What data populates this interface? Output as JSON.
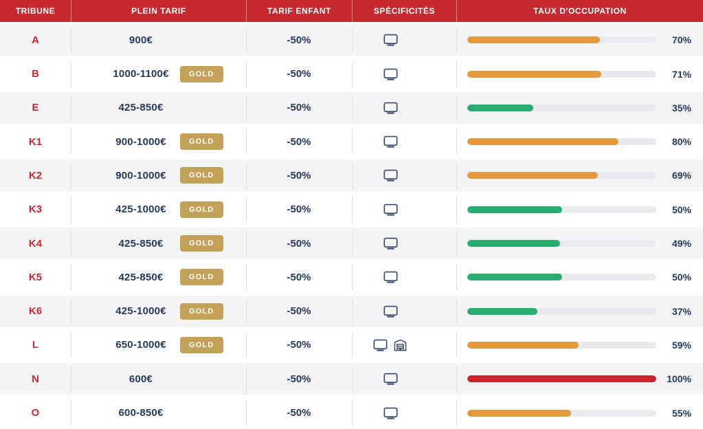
{
  "header": {
    "columns": [
      "TRIBUNE",
      "PLEIN TARIF",
      "TARIF ENFANT",
      "SPÉCIFICITÉS",
      "TAUX D'OCCUPATION"
    ]
  },
  "badge_label": "GOLD",
  "rows": [
    {
      "tribune": "A",
      "plein_tarif": "900€",
      "gold": false,
      "tarif_enfant": "-50%",
      "specificites": [
        "screen"
      ],
      "taux_percent": 70,
      "taux_label": "70%",
      "bar_color": "orange"
    },
    {
      "tribune": "B",
      "plein_tarif": "1000-1100€",
      "gold": true,
      "tarif_enfant": "-50%",
      "specificites": [
        "screen"
      ],
      "taux_percent": 71,
      "taux_label": "71%",
      "bar_color": "orange"
    },
    {
      "tribune": "E",
      "plein_tarif": "425-850€",
      "gold": false,
      "tarif_enfant": "-50%",
      "specificites": [
        "screen"
      ],
      "taux_percent": 35,
      "taux_label": "35%",
      "bar_color": "green"
    },
    {
      "tribune": "K1",
      "plein_tarif": "900-1000€",
      "gold": true,
      "tarif_enfant": "-50%",
      "specificites": [
        "screen"
      ],
      "taux_percent": 80,
      "taux_label": "80%",
      "bar_color": "orange"
    },
    {
      "tribune": "K2",
      "plein_tarif": "900-1000€",
      "gold": true,
      "tarif_enfant": "-50%",
      "specificites": [
        "screen"
      ],
      "taux_percent": 69,
      "taux_label": "69%",
      "bar_color": "orange"
    },
    {
      "tribune": "K3",
      "plein_tarif": "425-1000€",
      "gold": true,
      "tarif_enfant": "-50%",
      "specificites": [
        "screen"
      ],
      "taux_percent": 50,
      "taux_label": "50%",
      "bar_color": "green"
    },
    {
      "tribune": "K4",
      "plein_tarif": "425-850€",
      "gold": true,
      "tarif_enfant": "-50%",
      "specificites": [
        "screen"
      ],
      "taux_percent": 49,
      "taux_label": "49%",
      "bar_color": "green"
    },
    {
      "tribune": "K5",
      "plein_tarif": "425-850€",
      "gold": true,
      "tarif_enfant": "-50%",
      "specificites": [
        "screen"
      ],
      "taux_percent": 50,
      "taux_label": "50%",
      "bar_color": "green"
    },
    {
      "tribune": "K6",
      "plein_tarif": "425-1000€",
      "gold": true,
      "tarif_enfant": "-50%",
      "specificites": [
        "screen"
      ],
      "taux_percent": 37,
      "taux_label": "37%",
      "bar_color": "green"
    },
    {
      "tribune": "L",
      "plein_tarif": "650-1000€",
      "gold": true,
      "tarif_enfant": "-50%",
      "specificites": [
        "screen",
        "covered"
      ],
      "taux_percent": 59,
      "taux_label": "59%",
      "bar_color": "orange"
    },
    {
      "tribune": "N",
      "plein_tarif": "600€",
      "gold": false,
      "tarif_enfant": "-50%",
      "specificites": [
        "screen"
      ],
      "taux_percent": 100,
      "taux_label": "100%",
      "bar_color": "red"
    },
    {
      "tribune": "O",
      "plein_tarif": "600-850€",
      "gold": false,
      "tarif_enfant": "-50%",
      "specificites": [
        "screen"
      ],
      "taux_percent": 55,
      "taux_label": "55%",
      "bar_color": "orange"
    }
  ],
  "colors": {
    "header_bg": "#C62A30",
    "tribune_text": "#D0242C",
    "price_text": "#25395E",
    "gold_badge_bg": "#C3A159",
    "bar_track": "#E8EAEE",
    "row_alt_bg": "#F4F4F6",
    "orange": "#E5993F",
    "green": "#2BAD71",
    "red": "#C5262E"
  },
  "icons": {
    "screen": "screen-icon",
    "covered": "covered-stand-icon"
  }
}
